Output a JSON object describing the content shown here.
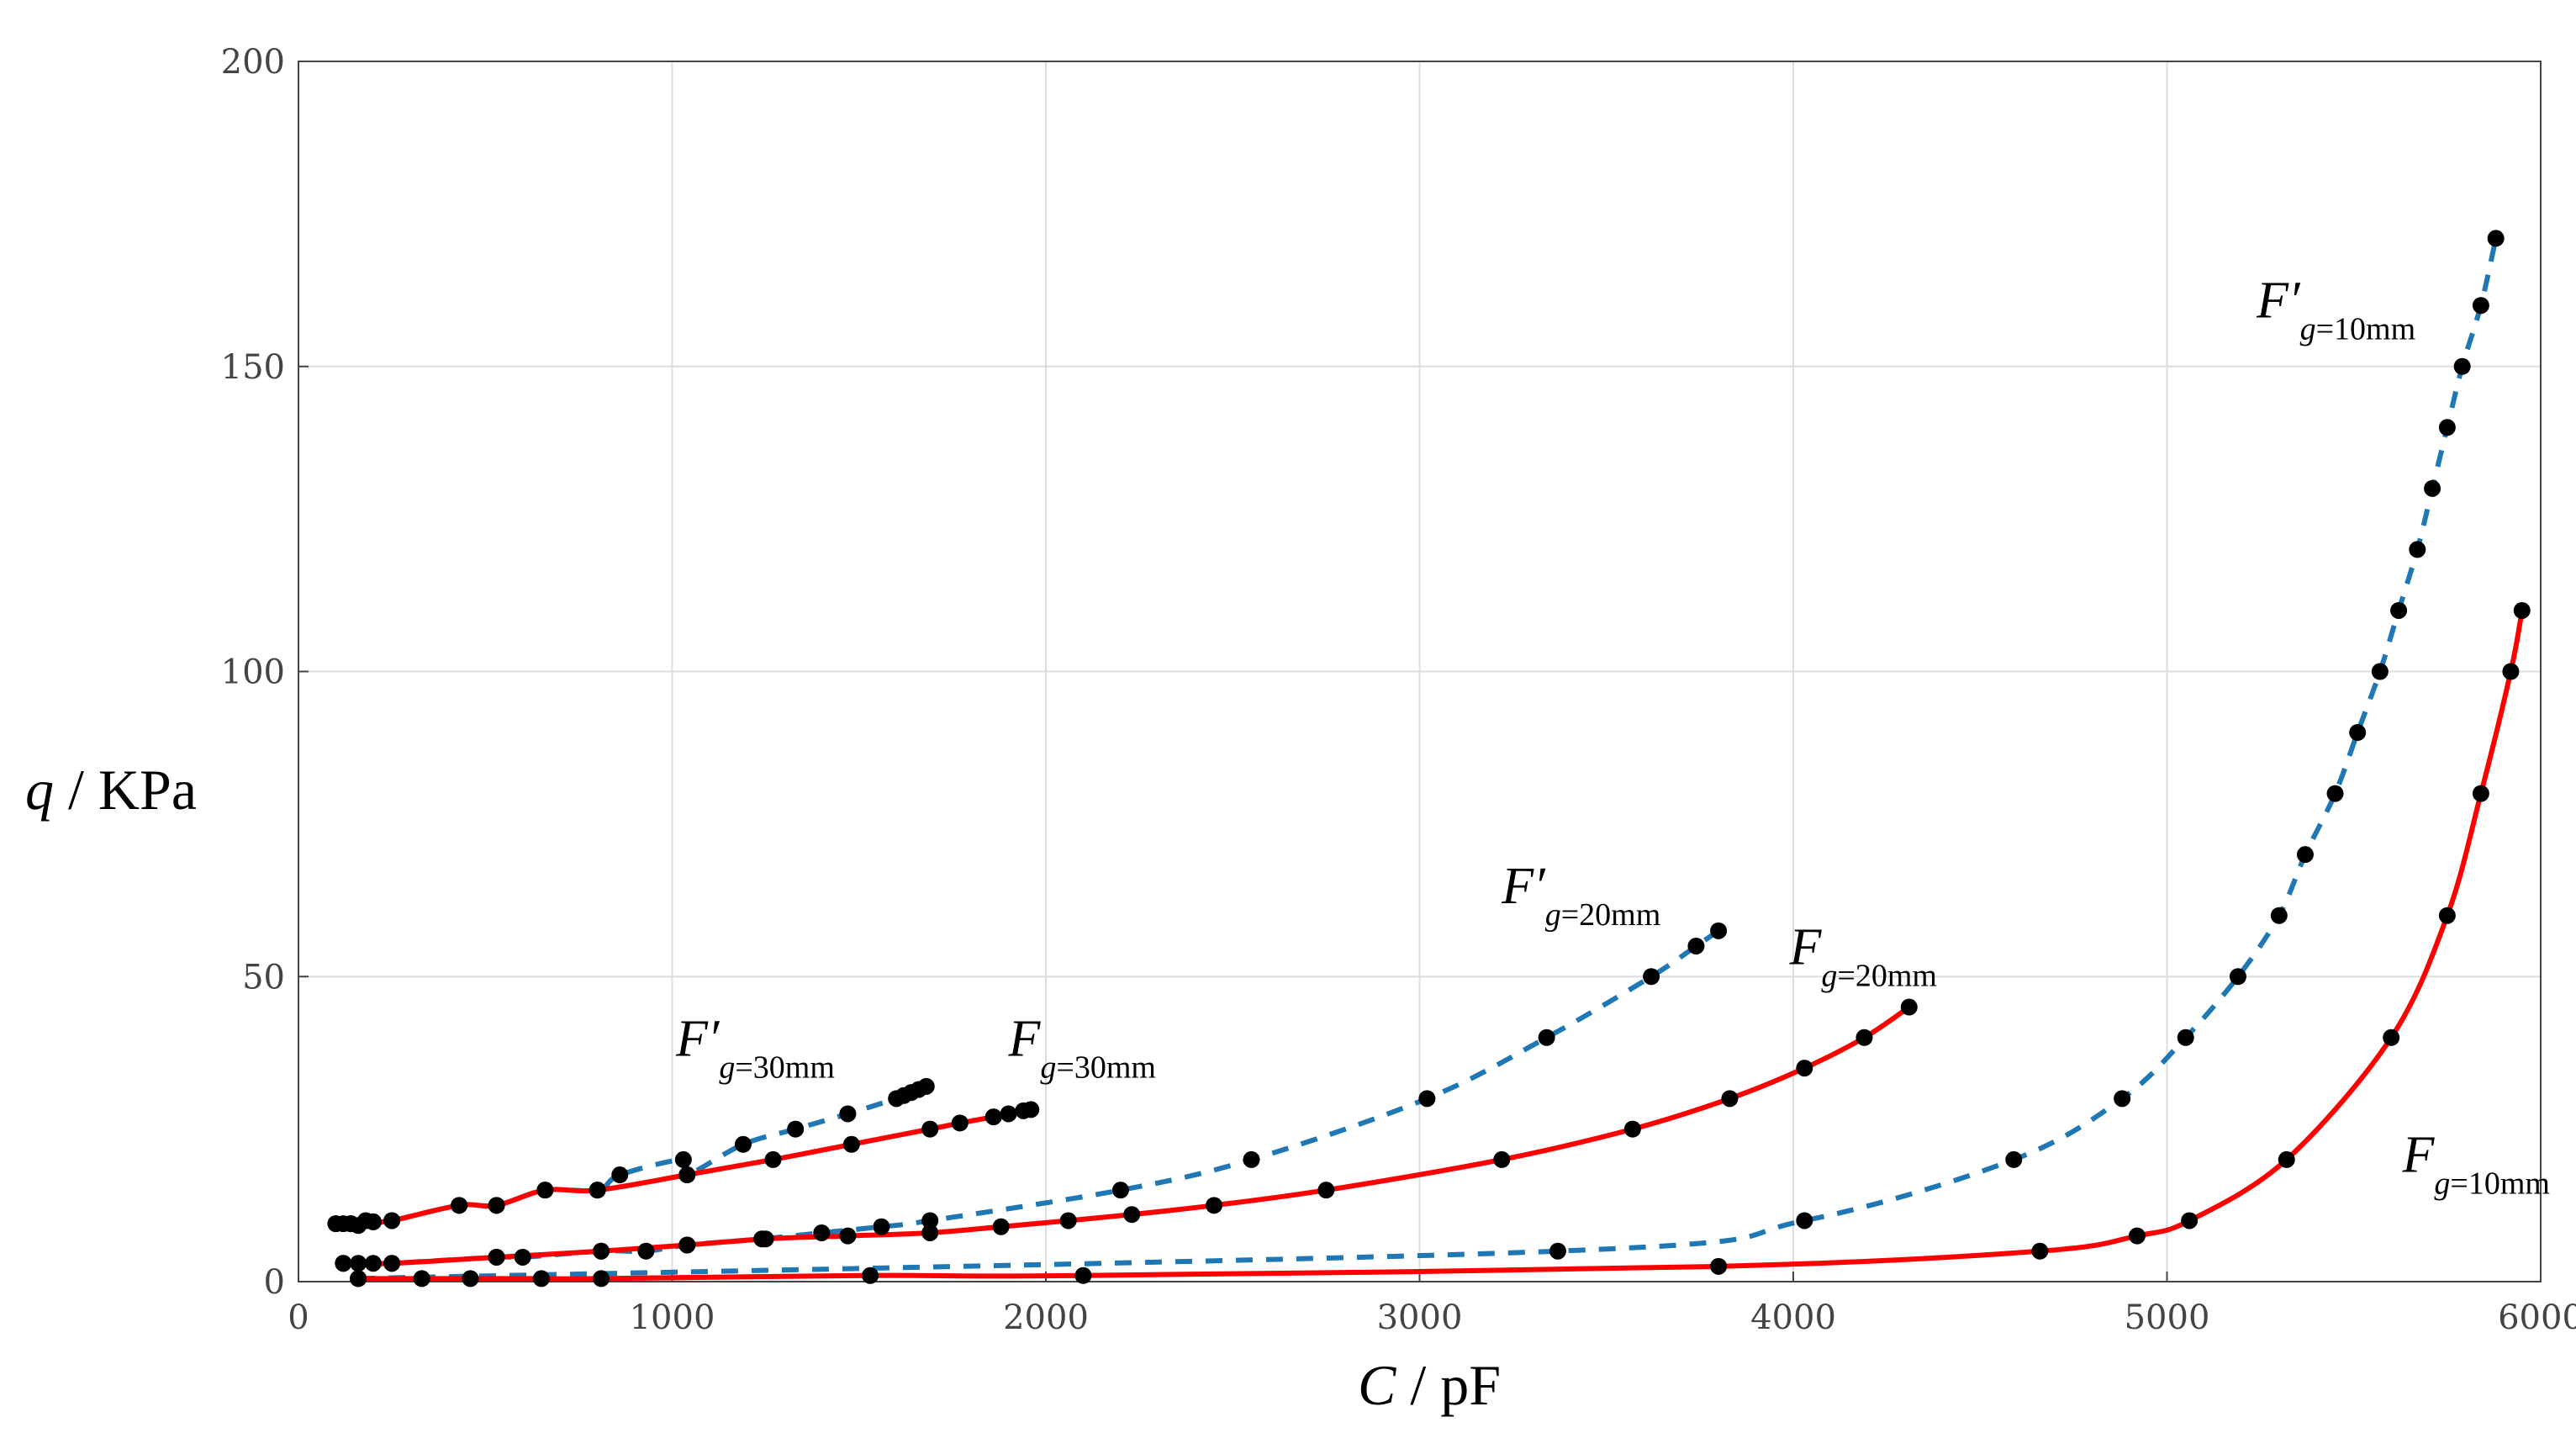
{
  "chart_data": {
    "type": "line",
    "xlabel": {
      "var": "C",
      "unit": " / pF"
    },
    "ylabel": {
      "var": "q",
      "unit": " / KPa"
    },
    "xlim": [
      0,
      6000
    ],
    "ylim": [
      0,
      200
    ],
    "xticks": [
      0,
      1000,
      2000,
      3000,
      4000,
      5000,
      6000
    ],
    "yticks": [
      0,
      50,
      100,
      150,
      200
    ],
    "grid": true,
    "colors": {
      "solid": "#ff0000",
      "dashed": "#1f77b4",
      "points": "#000000",
      "grid": "#dddddd",
      "axis": "#444444"
    },
    "series": [
      {
        "id": "fp30",
        "style": "dashed",
        "label": {
          "main": "F′",
          "sub": "g=30mm"
        },
        "points": [
          [
            100,
            9.5
          ],
          [
            120,
            9.5
          ],
          [
            140,
            9.5
          ],
          [
            160,
            9.2
          ],
          [
            180,
            10
          ],
          [
            200,
            9.8
          ],
          [
            250,
            10
          ],
          [
            430,
            12.5
          ],
          [
            530,
            12.5
          ],
          [
            660,
            15
          ],
          [
            800,
            15
          ],
          [
            860,
            17.5
          ],
          [
            1030,
            20
          ],
          [
            1040,
            17.5
          ],
          [
            1190,
            22.5
          ],
          [
            1330,
            25
          ],
          [
            1470,
            27.5
          ],
          [
            1600,
            30
          ],
          [
            1620,
            30.5
          ],
          [
            1640,
            31
          ],
          [
            1660,
            31.5
          ],
          [
            1680,
            32
          ]
        ]
      },
      {
        "id": "f30",
        "style": "solid",
        "label": {
          "main": "F",
          "sub": "g=30mm"
        },
        "points": [
          [
            100,
            9.5
          ],
          [
            140,
            9.5
          ],
          [
            200,
            9.8
          ],
          [
            250,
            10
          ],
          [
            430,
            12.5
          ],
          [
            530,
            12.5
          ],
          [
            660,
            15
          ],
          [
            800,
            15
          ],
          [
            1040,
            17.5
          ],
          [
            1270,
            20
          ],
          [
            1480,
            22.5
          ],
          [
            1690,
            25
          ],
          [
            1770,
            26
          ],
          [
            1860,
            27
          ],
          [
            1900,
            27.5
          ],
          [
            1940,
            28
          ],
          [
            1960,
            28.2
          ]
        ]
      },
      {
        "id": "fp20",
        "style": "dashed",
        "label": {
          "main": "F′",
          "sub": "g=20mm"
        },
        "points": [
          [
            120,
            3
          ],
          [
            160,
            3
          ],
          [
            200,
            3
          ],
          [
            250,
            3
          ],
          [
            530,
            4
          ],
          [
            600,
            4
          ],
          [
            810,
            5
          ],
          [
            930,
            5
          ],
          [
            1040,
            6
          ],
          [
            1240,
            7
          ],
          [
            1400,
            8
          ],
          [
            1560,
            9
          ],
          [
            1690,
            10
          ],
          [
            2200,
            15
          ],
          [
            2550,
            20
          ],
          [
            3020,
            30
          ],
          [
            3340,
            40
          ],
          [
            3620,
            50
          ],
          [
            3740,
            55
          ],
          [
            3800,
            57.5
          ]
        ]
      },
      {
        "id": "f20",
        "style": "solid",
        "label": {
          "main": "F",
          "sub": "g=20mm"
        },
        "points": [
          [
            120,
            3
          ],
          [
            250,
            3
          ],
          [
            530,
            4
          ],
          [
            810,
            5
          ],
          [
            1040,
            6
          ],
          [
            1250,
            7
          ],
          [
            1470,
            7.5
          ],
          [
            1690,
            8
          ],
          [
            1880,
            9
          ],
          [
            2060,
            10
          ],
          [
            2230,
            11
          ],
          [
            2450,
            12.5
          ],
          [
            2750,
            15
          ],
          [
            3220,
            20
          ],
          [
            3570,
            25
          ],
          [
            3830,
            30
          ],
          [
            4030,
            35
          ],
          [
            4190,
            40
          ],
          [
            4310,
            45
          ]
        ]
      },
      {
        "id": "fp10",
        "style": "dashed",
        "label": {
          "main": "F′",
          "sub": "g=10mm"
        },
        "points": [
          [
            160,
            0.5
          ],
          [
            3370,
            5
          ],
          [
            4030,
            10
          ],
          [
            4590,
            20
          ],
          [
            4880,
            30
          ],
          [
            5050,
            40
          ],
          [
            5190,
            50
          ],
          [
            5300,
            60
          ],
          [
            5370,
            70
          ],
          [
            5450,
            80
          ],
          [
            5510,
            90
          ],
          [
            5570,
            100
          ],
          [
            5620,
            110
          ],
          [
            5670,
            120
          ],
          [
            5710,
            130
          ],
          [
            5750,
            140
          ],
          [
            5790,
            150
          ],
          [
            5840,
            160
          ],
          [
            5880,
            171
          ]
        ]
      },
      {
        "id": "f10",
        "style": "solid",
        "label": {
          "main": "F",
          "sub": "g=10mm"
        },
        "points": [
          [
            160,
            0.5
          ],
          [
            330,
            0.5
          ],
          [
            460,
            0.5
          ],
          [
            650,
            0.5
          ],
          [
            810,
            0.5
          ],
          [
            1530,
            1
          ],
          [
            2100,
            1
          ],
          [
            3800,
            2.5
          ],
          [
            4660,
            5
          ],
          [
            4920,
            7.5
          ],
          [
            5060,
            10
          ],
          [
            5320,
            20
          ],
          [
            5600,
            40
          ],
          [
            5750,
            60
          ],
          [
            5840,
            80
          ],
          [
            5920,
            100
          ],
          [
            5950,
            110
          ]
        ]
      }
    ]
  }
}
